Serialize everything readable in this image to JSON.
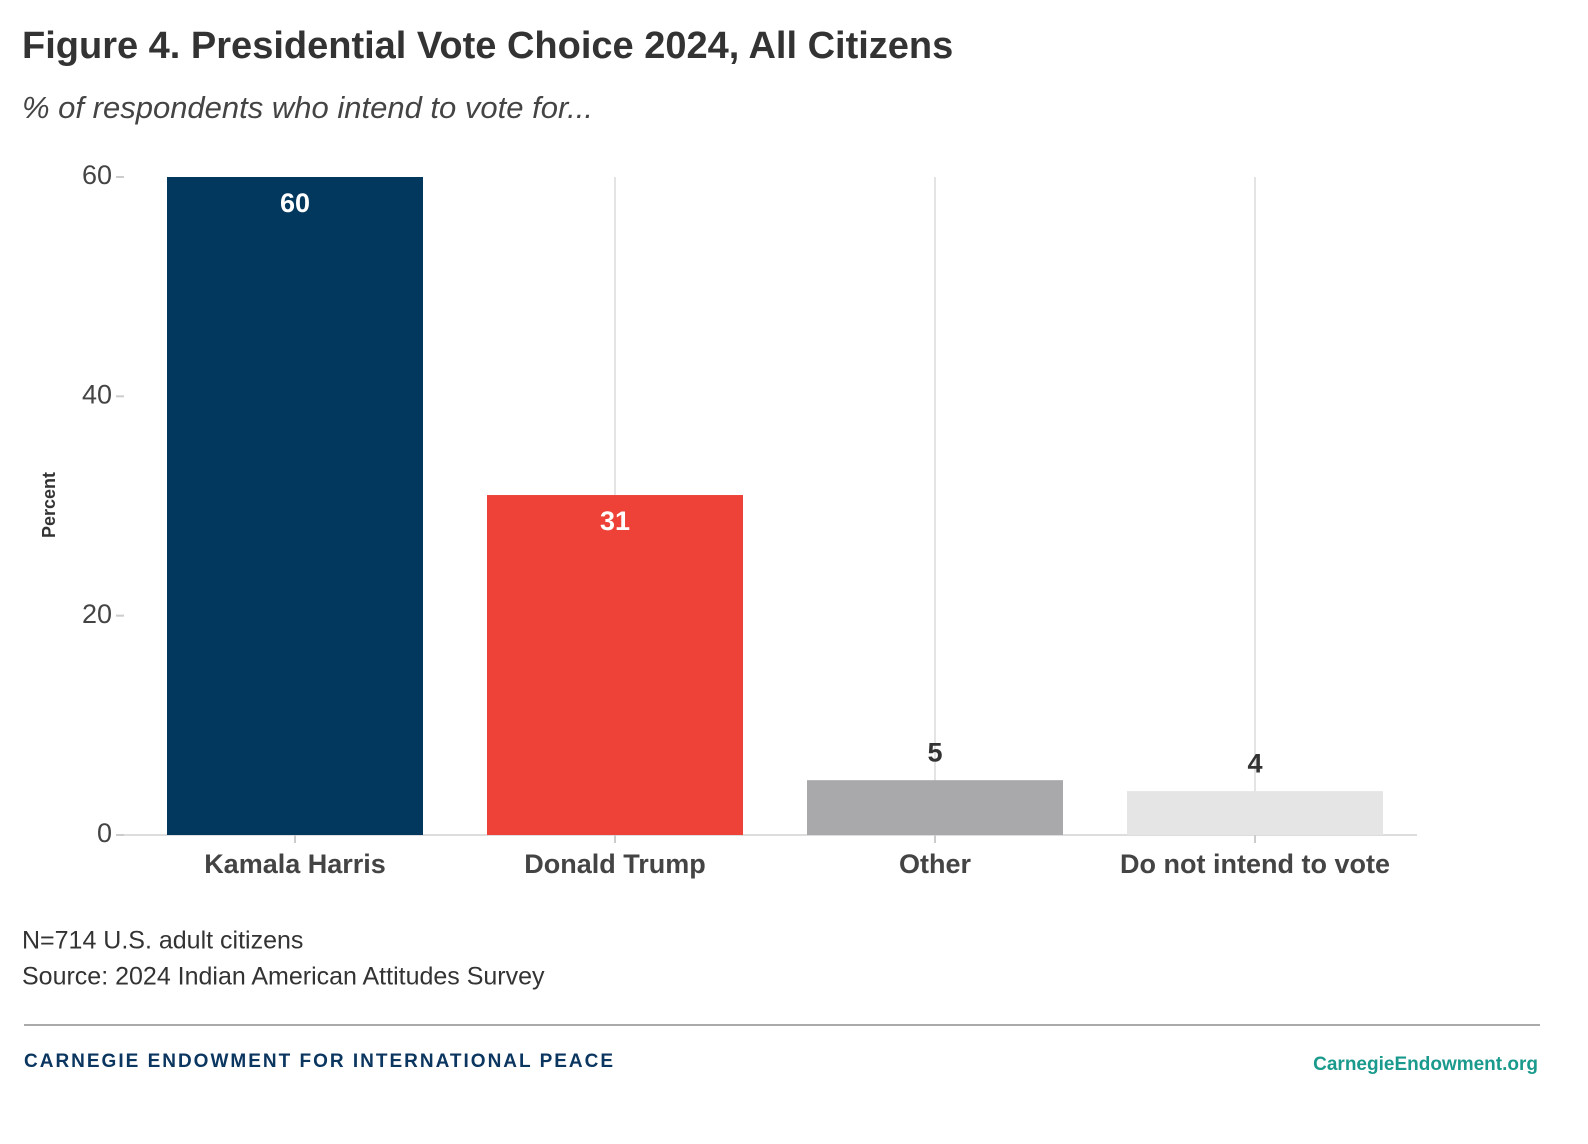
{
  "chart_data": {
    "type": "bar",
    "title": "Figure 4. Presidential Vote Choice 2024, All Citizens",
    "subtitle": "% of respondents who intend to vote for...",
    "y_label": "Percent",
    "categories": [
      "Kamala Harris",
      "Donald Trump",
      "Other",
      "Do not intend to vote"
    ],
    "values": [
      60,
      31,
      5,
      4
    ],
    "colors": [
      "#02375e",
      "#ee4238",
      "#a9a9ac",
      "#e5e5e6"
    ],
    "ylim": [
      0,
      60
    ],
    "yticks": [
      0,
      20,
      40,
      60
    ],
    "grid": true,
    "notes": [
      "N=714 U.S. adult citizens",
      "Source: 2024 Indian American Attitudes Survey"
    ],
    "footer_left": "CARNEGIE ENDOWMENT FOR INTERNATIONAL PEACE",
    "footer_right": "CarnegieEndowment.org"
  }
}
